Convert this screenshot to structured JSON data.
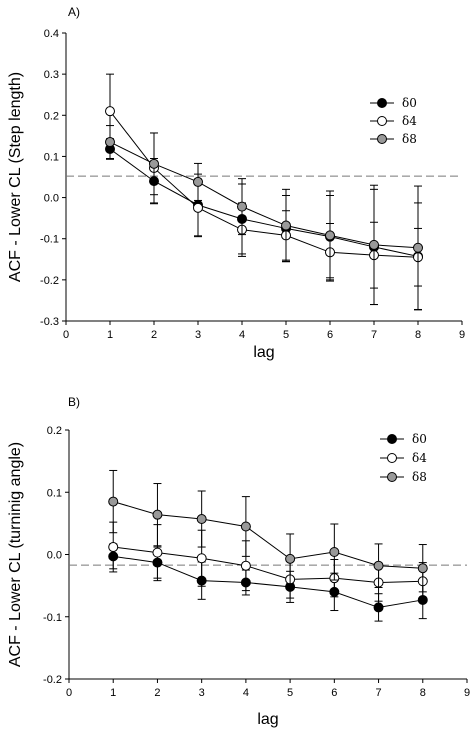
{
  "chart_data": [
    {
      "type": "line",
      "panel_label": "A)",
      "xlabel": "lag",
      "ylabel": "ACF - Lower CL (Step length)",
      "xlim": [
        0,
        9
      ],
      "ylim": [
        -0.3,
        0.4
      ],
      "x_ticks": [
        0,
        1,
        2,
        3,
        4,
        5,
        6,
        7,
        8,
        9
      ],
      "y_ticks": [
        -0.3,
        -0.2,
        -0.1,
        0.0,
        0.1,
        0.2,
        0.3,
        0.4
      ],
      "y_tick_labels": [
        "-0.3",
        "-0.2",
        "-0.1",
        "0.0",
        "0.1",
        "0.2",
        "0.3",
        "0.4"
      ],
      "reference_line": 0.052,
      "legend_position": "top-right",
      "x": [
        1,
        2,
        3,
        4,
        5,
        6,
        7,
        8
      ],
      "series": [
        {
          "name": "δ0",
          "fill": "#000000",
          "values": [
            0.118,
            0.04,
            -0.018,
            -0.052,
            -0.075,
            -0.095,
            -0.12,
            -0.143
          ],
          "errors": [
            0.025,
            0.055,
            0.075,
            0.085,
            0.08,
            0.1,
            0.14,
            0.13
          ]
        },
        {
          "name": "δ4",
          "fill": "#ffffff",
          "values": [
            0.21,
            0.072,
            -0.025,
            -0.078,
            -0.092,
            -0.133,
            -0.14,
            -0.145
          ],
          "errors": [
            0.09,
            0.085,
            0.07,
            0.065,
            0.06,
            0.07,
            0.08,
            0.07
          ]
        },
        {
          "name": "δ8",
          "fill": "#999999",
          "values": [
            0.135,
            0.082,
            0.038,
            -0.022,
            -0.068,
            -0.092,
            -0.115,
            -0.122
          ],
          "errors": [
            0.04,
            0.075,
            0.045,
            0.068,
            0.088,
            0.108,
            0.145,
            0.15
          ]
        }
      ]
    },
    {
      "type": "line",
      "panel_label": "B)",
      "xlabel": "lag",
      "ylabel": "ACF - Lower CL (turninig angle)",
      "xlim": [
        0,
        9
      ],
      "ylim": [
        -0.2,
        0.2
      ],
      "x_ticks": [
        0,
        1,
        2,
        3,
        4,
        5,
        6,
        7,
        8,
        9
      ],
      "y_ticks": [
        -0.2,
        -0.1,
        0.0,
        0.1,
        0.2
      ],
      "y_tick_labels": [
        "-0.2",
        "-0.1",
        "0.0",
        "0.1",
        "0.2"
      ],
      "reference_line": -0.017,
      "legend_position": "top-right",
      "x": [
        1,
        2,
        3,
        4,
        5,
        6,
        7,
        8
      ],
      "series": [
        {
          "name": "δ0",
          "fill": "#000000",
          "values": [
            -0.003,
            -0.013,
            -0.042,
            -0.045,
            -0.052,
            -0.06,
            -0.085,
            -0.073
          ],
          "errors": [
            0.02,
            0.025,
            0.03,
            0.02,
            0.025,
            0.03,
            0.022,
            0.03
          ]
        },
        {
          "name": "δ4",
          "fill": "#ffffff",
          "values": [
            0.012,
            0.003,
            -0.006,
            -0.018,
            -0.04,
            -0.038,
            -0.045,
            -0.043
          ],
          "errors": [
            0.04,
            0.045,
            0.045,
            0.04,
            0.03,
            0.03,
            0.03,
            0.03
          ]
        },
        {
          "name": "δ8",
          "fill": "#999999",
          "values": [
            0.085,
            0.064,
            0.057,
            0.045,
            -0.007,
            0.004,
            -0.018,
            -0.022
          ],
          "errors": [
            0.05,
            0.05,
            0.045,
            0.048,
            0.04,
            0.045,
            0.035,
            0.038
          ]
        }
      ]
    }
  ]
}
